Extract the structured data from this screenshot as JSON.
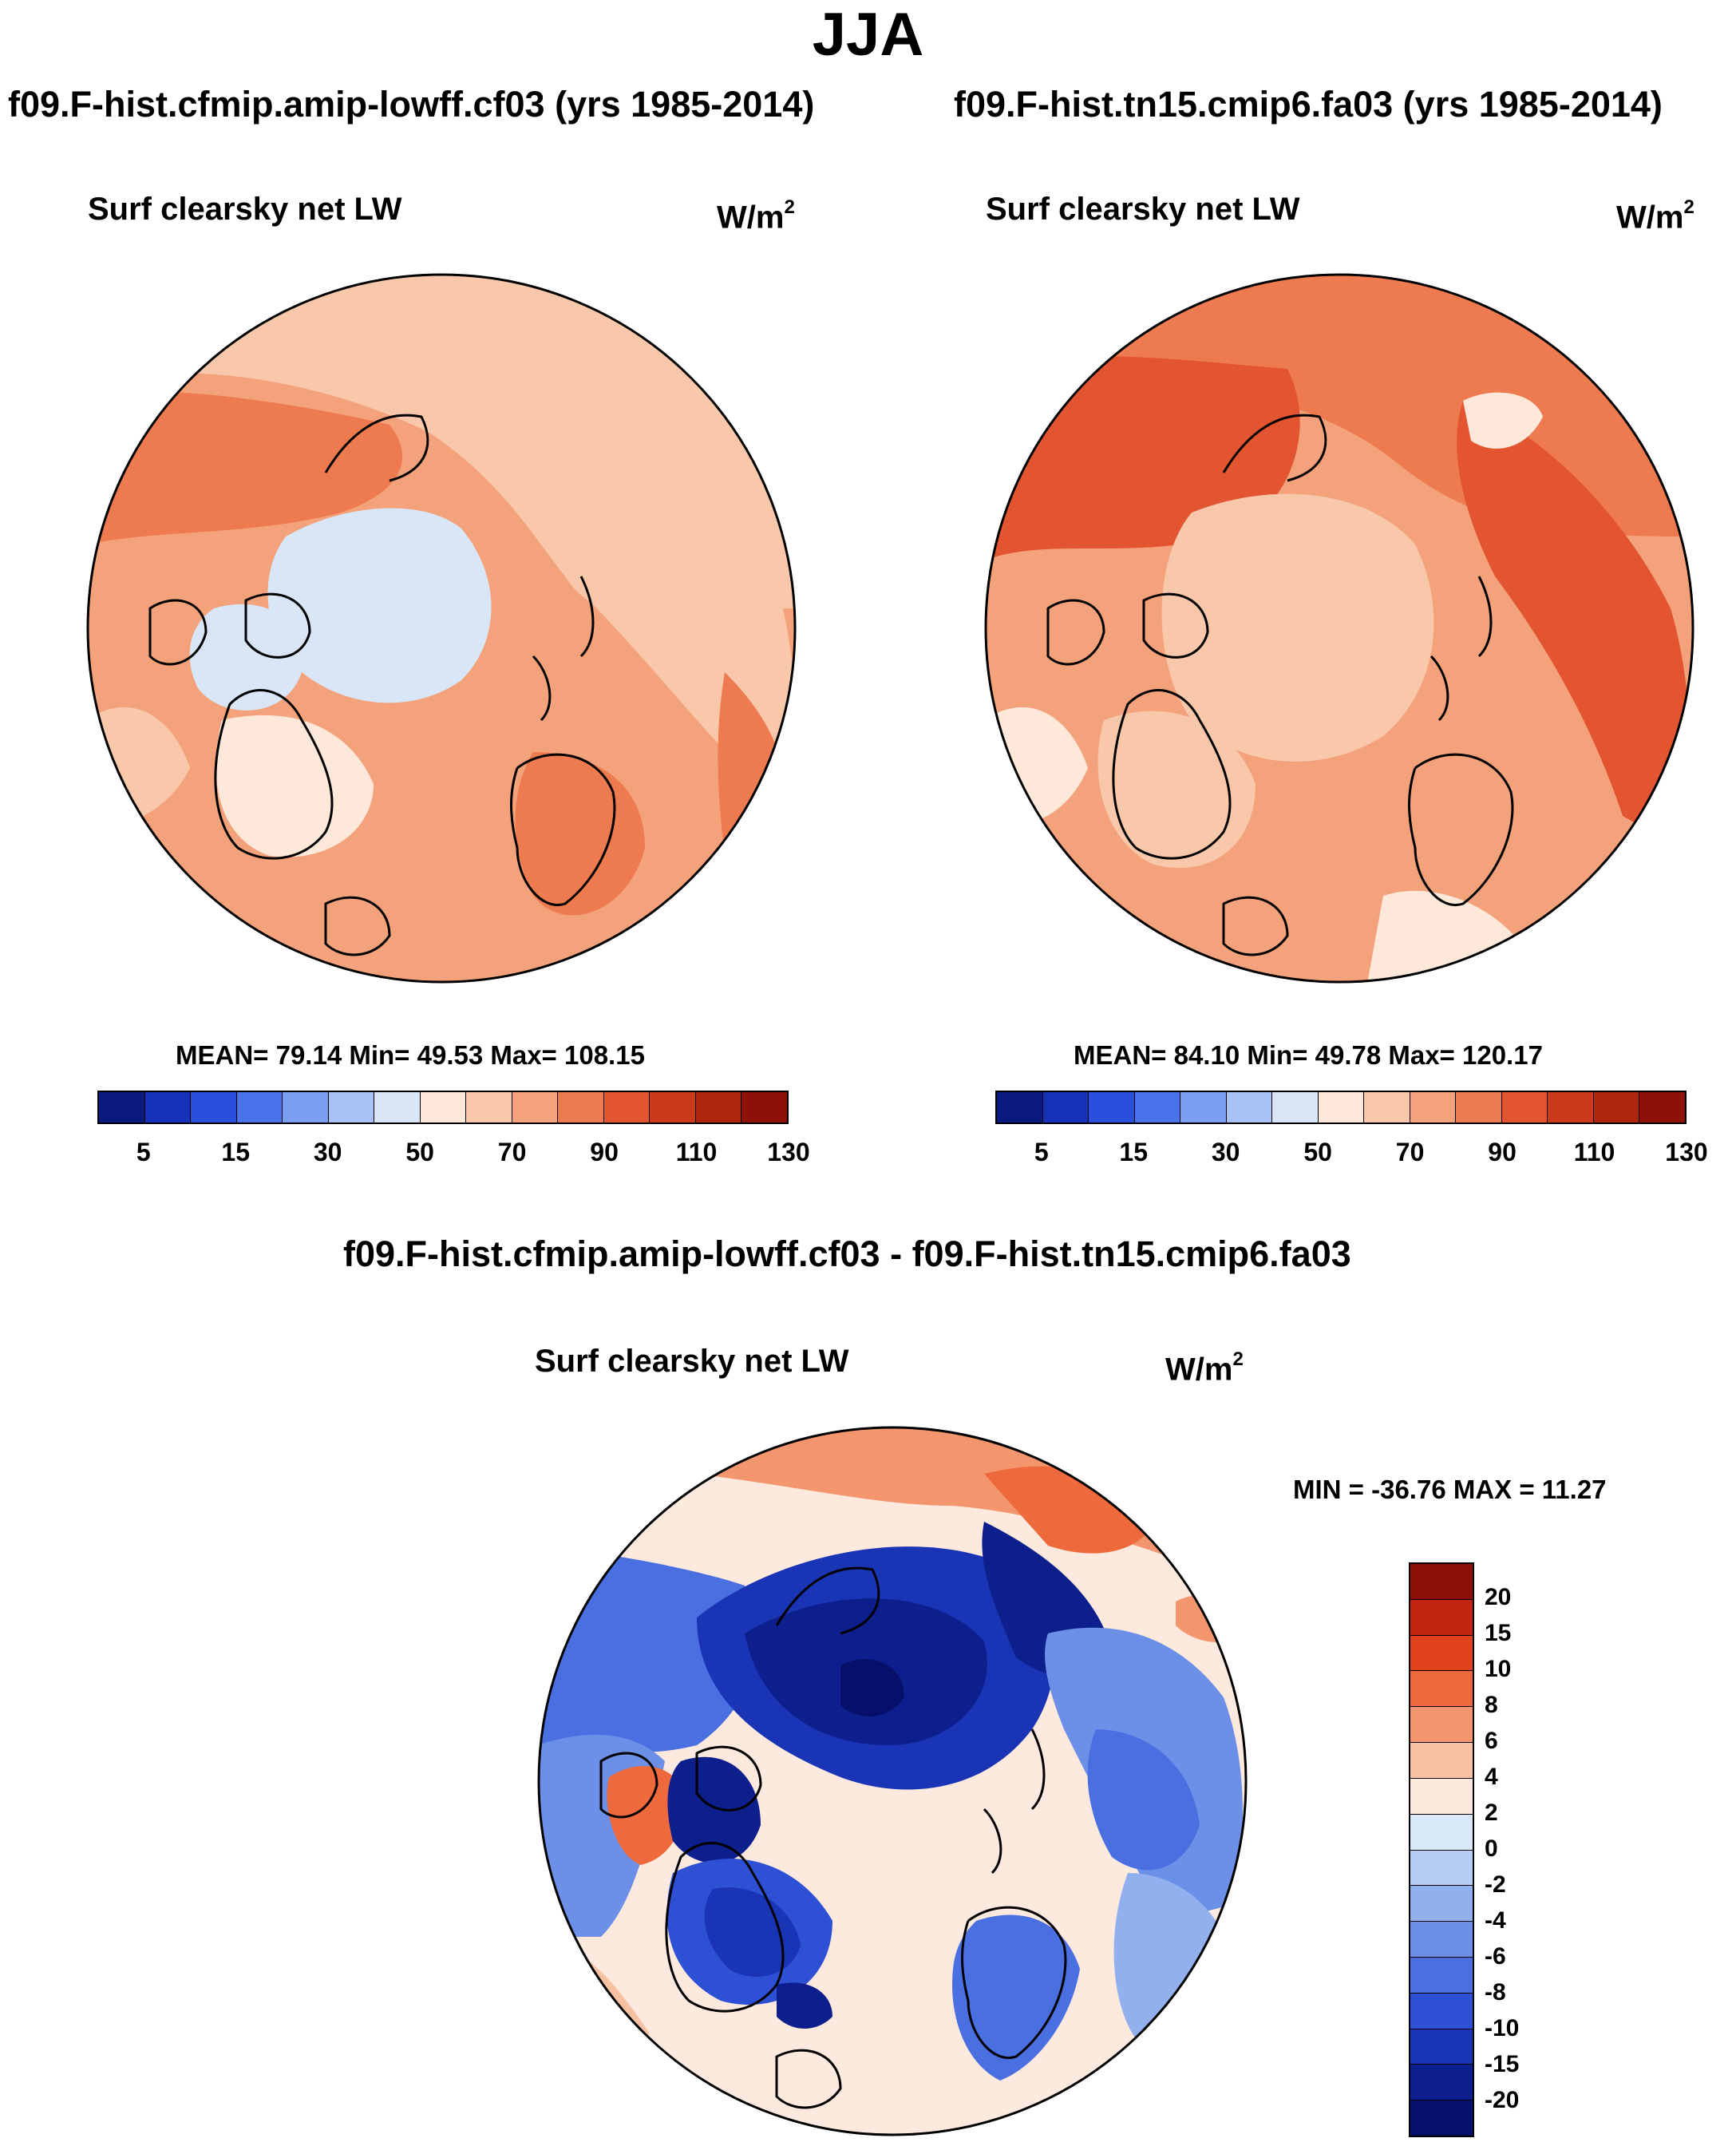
{
  "figure": {
    "season": "JJA",
    "panels": [
      {
        "id": "panel-1",
        "run_title": "f09.F-hist.cfmip.amip-lowff.cf03 (yrs 1985-2014)",
        "variable": "Surf clearsky net LW",
        "units": "W/m",
        "units_exp": "2",
        "stats": "MEAN=  79.14  Min=  49.53  Max= 108.15",
        "mean_value": 79.14
      },
      {
        "id": "panel-2",
        "run_title": "f09.F-hist.tn15.cmip6.fa03 (yrs 1985-2014)",
        "variable": "Surf clearsky net LW",
        "units": "W/m",
        "units_exp": "2",
        "stats": "MEAN=  84.10  Min=  49.78  Max= 120.17",
        "mean_value": 84.1
      }
    ],
    "absolute_colorbar": {
      "tick_labels": [
        "5",
        "15",
        "30",
        "50",
        "70",
        "90",
        "110",
        "130"
      ],
      "colors": [
        "#0b1a7f",
        "#1730b8",
        "#2a4fdc",
        "#4a74ec",
        "#7b9ef2",
        "#a9c2f5",
        "#d8e6f7",
        "#fde8da",
        "#f9c7aa",
        "#f4a27b",
        "#ee7b50",
        "#e35530",
        "#cc3a1c",
        "#b0260f",
        "#8c1207"
      ]
    },
    "difference": {
      "title": "f09.F-hist.cfmip.amip-lowff.cf03 - f09.F-hist.tn15.cmip6.fa03",
      "variable": "Surf clearsky net LW",
      "units": "W/m",
      "units_exp": "2",
      "stats": "MIN = -36.76 MAX =  11.27",
      "colorbar": {
        "tick_labels": [
          "20",
          "15",
          "10",
          "8",
          "6",
          "4",
          "2",
          "0",
          "-2",
          "-4",
          "-6",
          "-8",
          "-10",
          "-15",
          "-20"
        ],
        "colors": [
          "#8b0f06",
          "#c2240f",
          "#e0421c",
          "#ee6a3d",
          "#f3956d",
          "#f8c2a2",
          "#fde9dd",
          "#d8e8f8",
          "#b7ccf3",
          "#93b0ee",
          "#6c90e8",
          "#4a6fe0",
          "#2d50d4",
          "#1a34b6",
          "#0d1f8d",
          "#06106a"
        ]
      }
    }
  }
}
